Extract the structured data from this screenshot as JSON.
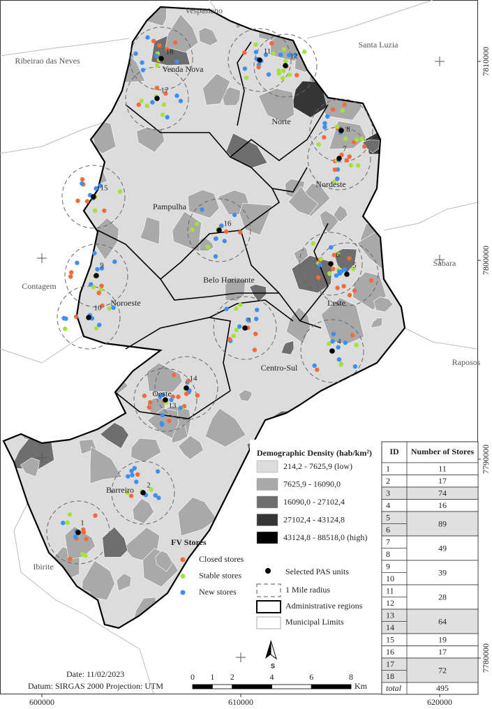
{
  "map": {
    "place_labels": [
      "Vespasiano",
      "Ribeirao das Neves",
      "Santa Luzia",
      "Contagem",
      "Sabara",
      "Raposos",
      "Ibirite"
    ],
    "region_labels": [
      "Venda Nova",
      "Norte",
      "Nordeste",
      "Pampulha",
      "Belo Horizonte",
      "Noroeste",
      "Leste",
      "Oeste",
      "Centro-Sul",
      "Barreiro"
    ],
    "unit_labels": [
      1,
      2,
      3,
      4,
      5,
      6,
      7,
      8,
      9,
      10,
      11,
      12,
      13,
      14,
      15,
      16,
      17,
      18
    ]
  },
  "coordinates": {
    "easting": [
      600000,
      610000,
      620000
    ],
    "northing": [
      7810000,
      7800000,
      7790000,
      7780000
    ]
  },
  "legend": {
    "density_title": "Demographic Density (hab/km²)",
    "density_classes": [
      {
        "label": "214,2 - 7625,9 (low)",
        "color": "#dcdcdc"
      },
      {
        "label": "7625,9 - 16090,0",
        "color": "#a9a9a9"
      },
      {
        "label": "16090,0 - 27102,4",
        "color": "#6e6e6e"
      },
      {
        "label": "27102,4 - 43124,8",
        "color": "#363636"
      },
      {
        "label": "43124,8 - 88518,0 (high)",
        "color": "#000000"
      }
    ],
    "stores_title": "FV Stores",
    "store_types": [
      {
        "label": "Closed stores",
        "color": "#f26b3a"
      },
      {
        "label": "Stable stores",
        "color": "#a6e03c"
      },
      {
        "label": "New stores",
        "color": "#3d8ff0"
      }
    ],
    "symbols": [
      "Selected PAS units",
      "1 Mile radius",
      "Administrative regions",
      "Municipal Limits"
    ]
  },
  "table": {
    "header": [
      "ID",
      "Number of Stores"
    ],
    "rows": [
      {
        "ids": [
          1
        ],
        "stores": 11,
        "shaded": false
      },
      {
        "ids": [
          2
        ],
        "stores": 17,
        "shaded": false
      },
      {
        "ids": [
          3
        ],
        "stores": 74,
        "shaded": true
      },
      {
        "ids": [
          4
        ],
        "stores": 16,
        "shaded": false
      },
      {
        "ids": [
          5,
          6
        ],
        "stores": 89,
        "shaded": true
      },
      {
        "ids": [
          7,
          8
        ],
        "stores": 49,
        "shaded": false
      },
      {
        "ids": [
          9,
          10
        ],
        "stores": 39,
        "shaded": false
      },
      {
        "ids": [
          11,
          12
        ],
        "stores": 28,
        "shaded": false
      },
      {
        "ids": [
          13,
          14
        ],
        "stores": 64,
        "shaded": true
      },
      {
        "ids": [
          15
        ],
        "stores": 19,
        "shaded": false
      },
      {
        "ids": [
          16
        ],
        "stores": 17,
        "shaded": false
      },
      {
        "ids": [
          17,
          18
        ],
        "stores": 72,
        "shaded": true
      }
    ],
    "total": {
      "label": "total",
      "stores": 495
    }
  },
  "footer": {
    "date": "Date: 11/02/2023",
    "datum": "Datum: SIRGAS 2000 Projection: UTM"
  },
  "scale_bar": {
    "ticks": [
      0,
      1,
      2,
      4,
      6,
      8
    ],
    "unit": "Km"
  },
  "north_arrow": "S"
}
